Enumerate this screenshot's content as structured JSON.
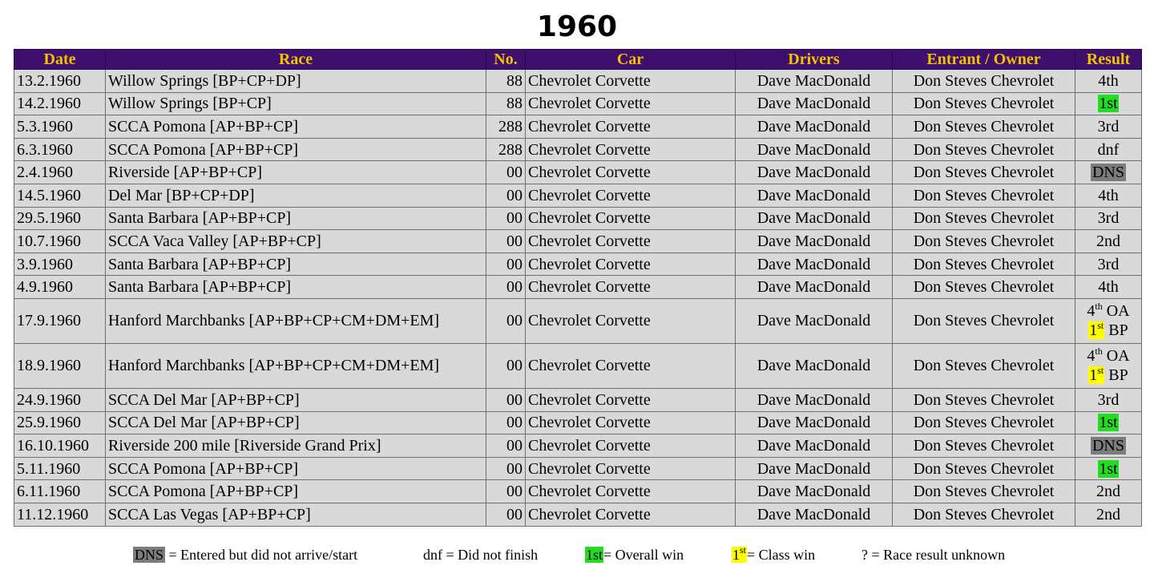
{
  "title": "1960",
  "columns": [
    "Date",
    "Race",
    "No.",
    "Car",
    "Drivers",
    "Entrant / Owner",
    "Result"
  ],
  "rows": [
    {
      "date": "13.2.1960",
      "race": "Willow Springs [BP+CP+DP]",
      "no": "88",
      "car": "Chevrolet Corvette",
      "drivers": "Dave MacDonald",
      "entrant": "Don Steves Chevrolet",
      "result": "4th",
      "style": "plain"
    },
    {
      "date": "14.2.1960",
      "race": "Willow Springs [BP+CP]",
      "no": "88",
      "car": "Chevrolet Corvette",
      "drivers": "Dave MacDonald",
      "entrant": "Don Steves Chevrolet",
      "result": "1st",
      "style": "green"
    },
    {
      "date": "5.3.1960",
      "race": "SCCA Pomona [AP+BP+CP]",
      "no": "288",
      "car": "Chevrolet Corvette",
      "drivers": "Dave MacDonald",
      "entrant": "Don Steves Chevrolet",
      "result": "3rd",
      "style": "plain"
    },
    {
      "date": "6.3.1960",
      "race": "SCCA Pomona [AP+BP+CP]",
      "no": "288",
      "car": "Chevrolet Corvette",
      "drivers": "Dave MacDonald",
      "entrant": "Don Steves Chevrolet",
      "result": "dnf",
      "style": "plain"
    },
    {
      "date": "2.4.1960",
      "race": "Riverside [AP+BP+CP]",
      "no": "00",
      "car": "Chevrolet Corvette",
      "drivers": "Dave MacDonald",
      "entrant": "Don Steves Chevrolet",
      "result": "DNS",
      "style": "grey"
    },
    {
      "date": "14.5.1960",
      "race": "Del Mar [BP+CP+DP]",
      "no": "00",
      "car": "Chevrolet Corvette",
      "drivers": "Dave MacDonald",
      "entrant": "Don Steves Chevrolet",
      "result": "4th",
      "style": "plain"
    },
    {
      "date": "29.5.1960",
      "race": "Santa Barbara [AP+BP+CP]",
      "no": "00",
      "car": "Chevrolet Corvette",
      "drivers": "Dave MacDonald",
      "entrant": "Don Steves Chevrolet",
      "result": "3rd",
      "style": "plain"
    },
    {
      "date": "10.7.1960",
      "race": "SCCA Vaca Valley [AP+BP+CP]",
      "no": "00",
      "car": "Chevrolet Corvette",
      "drivers": "Dave MacDonald",
      "entrant": "Don Steves Chevrolet",
      "result": "2nd",
      "style": "plain"
    },
    {
      "date": "3.9.1960",
      "race": "Santa Barbara [AP+BP+CP]",
      "no": "00",
      "car": "Chevrolet Corvette",
      "drivers": "Dave MacDonald",
      "entrant": "Don Steves Chevrolet",
      "result": "3rd",
      "style": "plain"
    },
    {
      "date": "4.9.1960",
      "race": "Santa Barbara [AP+BP+CP]",
      "no": "00",
      "car": "Chevrolet Corvette",
      "drivers": "Dave MacDonald",
      "entrant": "Don Steves Chevrolet",
      "result": "4th",
      "style": "plain"
    },
    {
      "date": "17.9.1960",
      "race": "Hanford Marchbanks [AP+BP+CP+CM+DM+EM]",
      "no": "00",
      "car": "Chevrolet Corvette",
      "drivers": "Dave MacDonald",
      "entrant": "Don Steves Chevrolet",
      "style": "multi",
      "overall_num": "4",
      "overall_sup": "th",
      "overall_text": "OA",
      "class_num": "1",
      "class_sup": "st",
      "class_text": "BP"
    },
    {
      "date": "18.9.1960",
      "race": "Hanford Marchbanks [AP+BP+CP+CM+DM+EM]",
      "no": "00",
      "car": "Chevrolet Corvette",
      "drivers": "Dave MacDonald",
      "entrant": "Don Steves Chevrolet",
      "style": "multi",
      "overall_num": "4",
      "overall_sup": "th",
      "overall_text": "OA",
      "class_num": "1",
      "class_sup": "st",
      "class_text": "BP"
    },
    {
      "date": "24.9.1960",
      "race": "SCCA Del Mar [AP+BP+CP]",
      "no": "00",
      "car": "Chevrolet Corvette",
      "drivers": "Dave MacDonald",
      "entrant": "Don Steves Chevrolet",
      "result": "3rd",
      "style": "plain"
    },
    {
      "date": "25.9.1960",
      "race": "SCCA Del Mar [AP+BP+CP]",
      "no": "00",
      "car": "Chevrolet Corvette",
      "drivers": "Dave MacDonald",
      "entrant": "Don Steves Chevrolet",
      "result": "1st",
      "style": "green"
    },
    {
      "date": "16.10.1960",
      "race": "Riverside 200 mile [Riverside Grand Prix]",
      "no": "00",
      "car": "Chevrolet Corvette",
      "drivers": "Dave MacDonald",
      "entrant": "Don Steves Chevrolet",
      "result": "DNS",
      "style": "grey"
    },
    {
      "date": "5.11.1960",
      "race": "SCCA Pomona [AP+BP+CP]",
      "no": "00",
      "car": "Chevrolet Corvette",
      "drivers": "Dave MacDonald",
      "entrant": "Don Steves Chevrolet",
      "result": "1st",
      "style": "green"
    },
    {
      "date": "6.11.1960",
      "race": "SCCA Pomona [AP+BP+CP]",
      "no": "00",
      "car": "Chevrolet Corvette",
      "drivers": "Dave MacDonald",
      "entrant": "Don Steves Chevrolet",
      "result": "2nd",
      "style": "plain"
    },
    {
      "date": "11.12.1960",
      "race": "SCCA Las Vegas [AP+BP+CP]",
      "no": "00",
      "car": "Chevrolet Corvette",
      "drivers": "Dave MacDonald",
      "entrant": "Don Steves Chevrolet",
      "result": "2nd",
      "style": "plain"
    }
  ],
  "legend": {
    "dns_key": "DNS",
    "dns_text": "= Entered but did not arrive/start",
    "dnf_text": "dnf = Did not finish",
    "overall_key": "1st",
    "overall_text": "= Overall win",
    "class_key_num": "1",
    "class_key_sup": "st",
    "class_text": "= Class win",
    "unknown_text": "? = Race result unknown"
  },
  "colors": {
    "header_bg": "#3f0f6e",
    "header_text": "#f2c300",
    "cell_bg": "#d9d9d9",
    "overall_win": "#22dd22",
    "class_win": "#ffff00",
    "dns": "#7c7c7c"
  }
}
